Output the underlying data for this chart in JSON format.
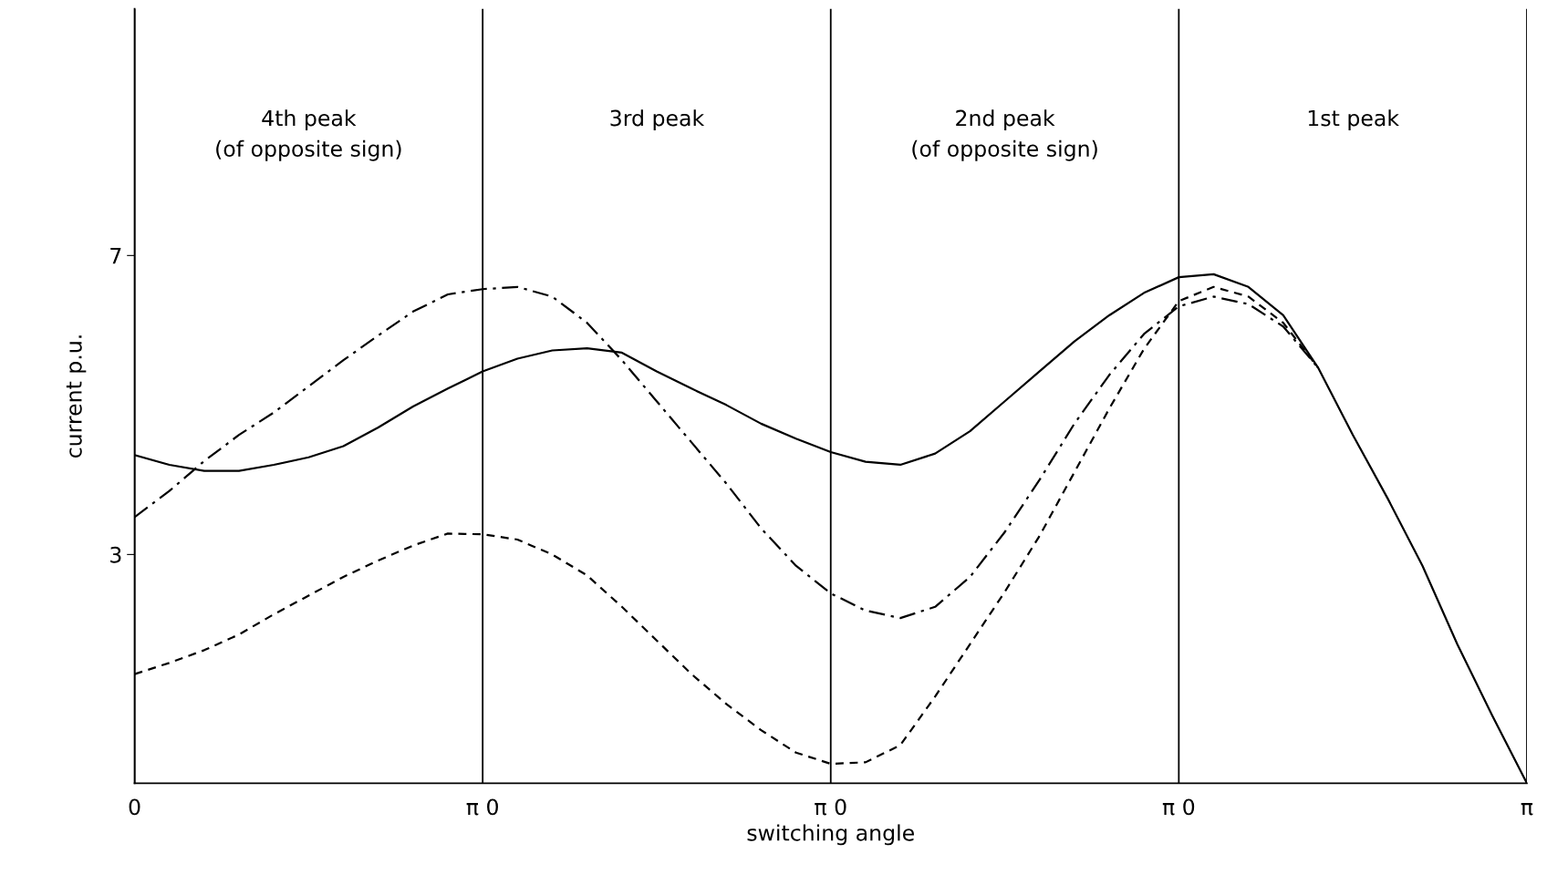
{
  "chart_data": {
    "type": "line",
    "xlabel": "switching angle",
    "ylabel": "current p.u.",
    "categories": [
      "0",
      null,
      null,
      null,
      null,
      null,
      null,
      null,
      null,
      null,
      "π 0",
      null,
      null,
      null,
      null,
      null,
      null,
      null,
      null,
      null,
      "π 0",
      null,
      null,
      null,
      null,
      null,
      null,
      null,
      null,
      null,
      "π 0",
      null,
      null,
      null,
      null,
      null,
      null,
      null,
      null,
      null,
      "π"
    ],
    "ylim": [
      -0.06,
      10.3
    ],
    "yticks": [
      3,
      7
    ],
    "grid": "x",
    "legend": false,
    "marker": "none",
    "annotations": [
      "4th peak\n(of opposite sign)",
      "3rd peak",
      "2nd peak\n(of opposite sign)",
      "1st peak"
    ],
    "series": [
      {
        "color": "#000000",
        "line_style": "solid",
        "values": [
          4.33,
          4.2,
          4.12,
          4.12,
          4.2,
          4.3,
          4.45,
          4.7,
          4.98,
          5.22,
          5.45,
          5.62,
          5.73,
          5.76,
          5.7,
          5.45,
          5.22,
          5.0,
          4.75,
          4.55,
          4.37,
          4.24,
          4.2,
          4.35,
          4.65,
          5.05,
          5.45,
          5.85,
          6.2,
          6.5,
          6.71,
          6.75,
          6.58,
          6.2,
          5.5,
          4.6,
          3.75,
          2.85,
          1.8,
          0.85,
          -0.06
        ]
      },
      {
        "color": "#000000",
        "line_style": "dashdot",
        "values": [
          3.5,
          3.85,
          4.25,
          4.6,
          4.9,
          5.25,
          5.6,
          5.93,
          6.25,
          6.48,
          6.55,
          6.58,
          6.45,
          6.1,
          5.6,
          5.05,
          4.5,
          3.95,
          3.35,
          2.85,
          2.48,
          2.25,
          2.15,
          2.3,
          2.7,
          3.3,
          4.0,
          4.75,
          5.4,
          5.95,
          6.32,
          6.45,
          6.35,
          6.05,
          5.5,
          null,
          null,
          null,
          null,
          null,
          null
        ]
      },
      {
        "color": "#000000",
        "line_style": "dashed",
        "values": [
          1.4,
          1.55,
          1.72,
          1.93,
          2.2,
          2.45,
          2.7,
          2.92,
          3.12,
          3.28,
          3.27,
          3.2,
          3.0,
          2.72,
          2.3,
          1.85,
          1.4,
          1.0,
          0.65,
          0.35,
          0.2,
          0.22,
          0.45,
          1.1,
          1.8,
          2.5,
          3.25,
          4.1,
          4.95,
          5.75,
          6.39,
          6.58,
          6.45,
          6.1,
          5.5,
          null,
          null,
          null,
          null,
          null,
          null
        ]
      }
    ]
  }
}
